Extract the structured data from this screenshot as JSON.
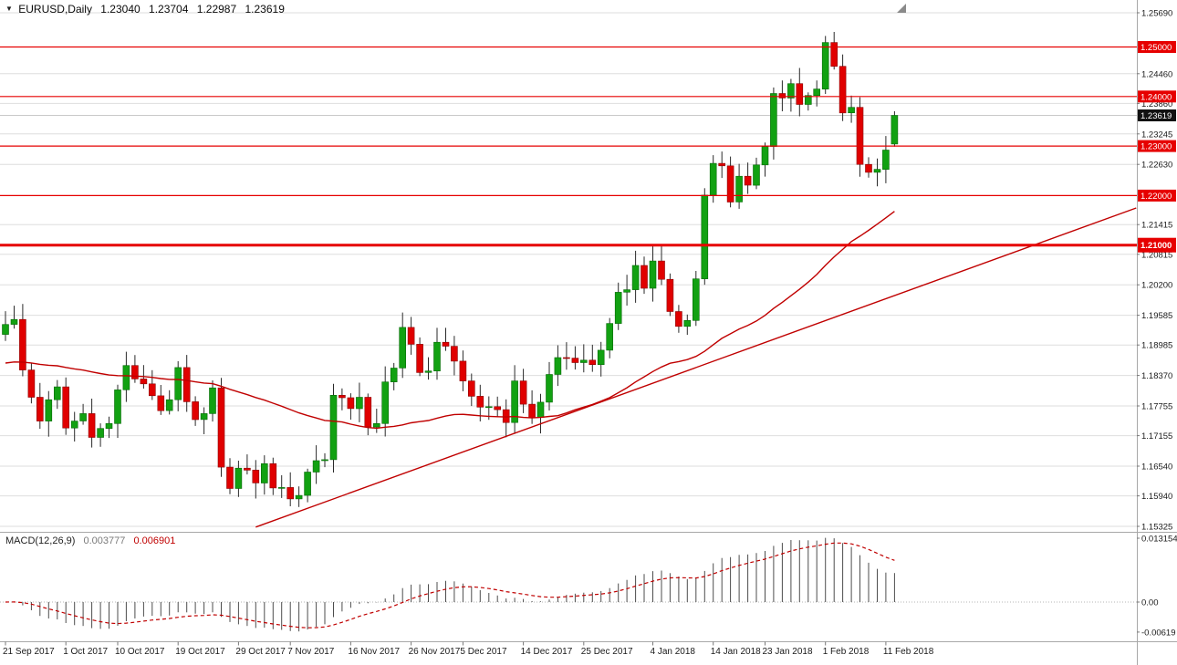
{
  "header": {
    "dropdown_icon": "▼",
    "symbol": "EURUSD,Daily",
    "open": "1.23040",
    "high": "1.23704",
    "low": "1.22987",
    "close": "1.23619"
  },
  "macd_panel": {
    "label": "MACD(12,26,9)",
    "macd_value": "0.003777",
    "signal_value": "0.006901",
    "axis_labels": [
      {
        "label": "0.013154",
        "value": 0.013154
      },
      {
        "label": "0.00",
        "value": 0
      },
      {
        "label": "-0.00619",
        "value": -0.00619
      }
    ]
  },
  "price_axis": {
    "ticks": [
      {
        "label": "1.25690",
        "value": 1.2569
      },
      {
        "label": "1.24460",
        "value": 1.2446
      },
      {
        "label": "1.23860",
        "value": 1.2386
      },
      {
        "label": "1.23245",
        "value": 1.23245
      },
      {
        "label": "1.22630",
        "value": 1.2263
      },
      {
        "label": "1.21415",
        "value": 1.21415
      },
      {
        "label": "1.20815",
        "value": 1.20815
      },
      {
        "label": "1.20200",
        "value": 1.202
      },
      {
        "label": "1.19585",
        "value": 1.19585
      },
      {
        "label": "1.18985",
        "value": 1.18985
      },
      {
        "label": "1.18370",
        "value": 1.1837
      },
      {
        "label": "1.17755",
        "value": 1.17755
      },
      {
        "label": "1.17155",
        "value": 1.17155
      },
      {
        "label": "1.16540",
        "value": 1.1654
      },
      {
        "label": "1.15940",
        "value": 1.1594
      },
      {
        "label": "1.15325",
        "value": 1.15325
      }
    ],
    "levels": [
      {
        "label": "1.25000",
        "value": 1.25,
        "thick": false
      },
      {
        "label": "1.24000",
        "value": 1.24,
        "thick": false
      },
      {
        "label": "1.23000",
        "value": 1.23,
        "thick": false
      },
      {
        "label": "1.22000",
        "value": 1.22,
        "thick": false
      },
      {
        "label": "1.21000",
        "value": 1.21,
        "thick": true
      }
    ],
    "current": {
      "label": "1.23619",
      "value": 1.23619
    }
  },
  "time_axis": {
    "labels": [
      {
        "label": "21 Sep 2017",
        "bar": 0
      },
      {
        "label": "1 Oct 2017",
        "bar": 7
      },
      {
        "label": "10 Oct 2017",
        "bar": 13
      },
      {
        "label": "19 Oct 2017",
        "bar": 20
      },
      {
        "label": "29 Oct 2017",
        "bar": 27
      },
      {
        "label": "7 Nov 2017",
        "bar": 33
      },
      {
        "label": "16 Nov 2017",
        "bar": 40
      },
      {
        "label": "26 Nov 2017",
        "bar": 47
      },
      {
        "label": "5 Dec 2017",
        "bar": 53
      },
      {
        "label": "14 Dec 2017",
        "bar": 60
      },
      {
        "label": "25 Dec 2017",
        "bar": 67
      },
      {
        "label": "4 Jan 2018",
        "bar": 75
      },
      {
        "label": "14 Jan 2018",
        "bar": 82
      },
      {
        "label": "23 Jan 2018",
        "bar": 88
      },
      {
        "label": "1 Feb 2018",
        "bar": 95
      },
      {
        "label": "11 Feb 2018",
        "bar": 102
      }
    ]
  },
  "chart_data": {
    "type": "candlestick",
    "symbol": "EURUSD",
    "timeframe": "Daily",
    "ylim": [
      1.15325,
      1.2569
    ],
    "first_open": 1.192,
    "closes": [
      1.194,
      1.195,
      1.1848,
      1.1793,
      1.1745,
      1.1788,
      1.1814,
      1.1731,
      1.1745,
      1.176,
      1.1712,
      1.173,
      1.174,
      1.1808,
      1.1857,
      1.183,
      1.182,
      1.1796,
      1.1766,
      1.1788,
      1.1853,
      1.1784,
      1.1748,
      1.176,
      1.1812,
      1.1652,
      1.1609,
      1.165,
      1.1646,
      1.162,
      1.1659,
      1.161,
      1.1611,
      1.1588,
      1.1595,
      1.1642,
      1.1665,
      1.1667,
      1.1797,
      1.1792,
      1.177,
      1.1793,
      1.1733,
      1.174,
      1.1824,
      1.1852,
      1.1934,
      1.19,
      1.1843,
      1.1846,
      1.1904,
      1.1896,
      1.1866,
      1.1826,
      1.1795,
      1.1773,
      1.1774,
      1.1768,
      1.1742,
      1.1826,
      1.1779,
      1.1752,
      1.1783,
      1.1839,
      1.1873,
      1.1872,
      1.1863,
      1.1868,
      1.1859,
      1.1888,
      1.1942,
      1.2005,
      1.201,
      1.2059,
      1.2013,
      1.2068,
      1.2031,
      1.1966,
      1.1936,
      1.1948,
      1.2032,
      1.2201,
      1.2265,
      1.226,
      1.2187,
      1.2239,
      1.2221,
      1.2262,
      1.2299,
      1.2406,
      1.2397,
      1.2426,
      1.2384,
      1.2402,
      1.2415,
      1.2509,
      1.2461,
      1.2367,
      1.2378,
      1.2263,
      1.2247,
      1.2253,
      1.2292,
      1.23619
    ],
    "last_candle": {
      "open": 1.2304,
      "high": 1.23704,
      "low": 1.22987,
      "close": 1.23619
    },
    "moving_average": {
      "period": 40,
      "prefill": 1.186
    },
    "macd": {
      "fast": 12,
      "slow": 26,
      "signal": 9
    },
    "horizontal_levels": [
      1.25,
      1.24,
      1.23,
      1.22,
      1.21
    ],
    "trendline": {
      "bar1": 29,
      "price1": 1.1531,
      "bar2": 131,
      "price2": 1.2175
    },
    "current_price": 1.23619
  },
  "colors": {
    "up": "#12a112",
    "up_border": "#066a06",
    "down": "#e00000",
    "down_border": "#8a0000",
    "wick": "#2a2a2a",
    "grid": "#dedede",
    "level": "#e60000",
    "ma": "#c00000",
    "trend": "#c00000",
    "signal": "#c00000",
    "hist": "#4d4d4d",
    "current_bg": "#111111",
    "axis_text": "#1a1a1a"
  },
  "icons": {
    "symbol_dropdown": "▼",
    "chart_shift_marker": "corner-triangle"
  }
}
